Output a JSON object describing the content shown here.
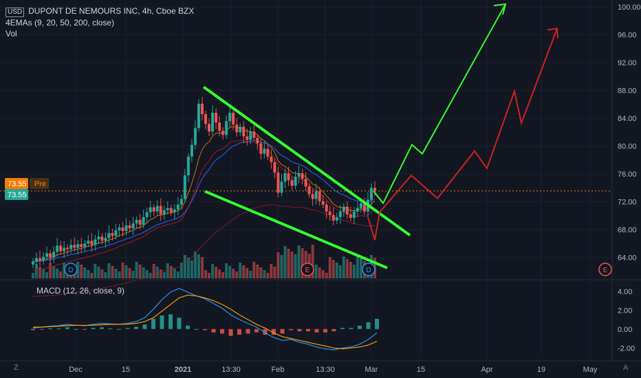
{
  "header": {
    "currency_badge": "USD",
    "symbol_line": "DUPONT DE NEMOURS INC, 4h, Cboe BZX",
    "indicator_line": "4EMAs (9, 20, 50, 200, close)",
    "volume_label": "Vol"
  },
  "price_tags": {
    "pre_value": "73.55",
    "pre_label": "Pre",
    "last_value": "73.55"
  },
  "macd_label": "MACD (12, 26, close, 9)",
  "corner_left": "Z",
  "corner_right": "A",
  "colors": {
    "background": "#131722",
    "up": "#26a69a",
    "down": "#ef5350",
    "trendline": "#33ff33",
    "projection_green": "#33ff33",
    "projection_red": "#cc2222",
    "ema9": "#f57c00",
    "ema20": "#2962ff",
    "ema50": "#b71c1c",
    "ema200": "#b71c1c",
    "macd_line": "#2196f3",
    "signal_line": "#ff9800"
  },
  "chart_data": {
    "type": "candlestick",
    "price_axis": {
      "ticks": [
        "64.00",
        "68.00",
        "72.00",
        "76.00",
        "80.00",
        "84.00",
        "88.00",
        "92.00",
        "96.00",
        "100.00"
      ],
      "range": [
        61.0,
        101.0
      ]
    },
    "time_axis": {
      "ticks": [
        "Dec",
        "15",
        "2021",
        "13:30",
        "Feb",
        "13:30",
        "Mar",
        "15",
        "Apr",
        "19",
        "May"
      ]
    },
    "macd_axis": {
      "ticks": [
        "4.00",
        "2.00",
        "0.00",
        "-2.00"
      ],
      "range": [
        -3.0,
        5.0
      ]
    },
    "event_markers": [
      {
        "label": "D",
        "kind": "dividend",
        "at": "Dec (early)"
      },
      {
        "label": "E",
        "kind": "earnings",
        "at": "Feb (early)"
      },
      {
        "label": "D",
        "kind": "dividend",
        "at": "Mar (late Feb)"
      },
      {
        "label": "E",
        "kind": "earnings",
        "at": "May"
      }
    ],
    "closes": [
      63.4,
      63.9,
      63.6,
      64.1,
      64.6,
      64.0,
      64.8,
      65.7,
      64.9,
      65.4,
      65.2,
      65.8,
      65.4,
      65.9,
      65.5,
      66.0,
      66.4,
      65.8,
      66.6,
      67.0,
      66.4,
      66.8,
      67.5,
      67.1,
      67.9,
      68.3,
      67.8,
      68.6,
      68.2,
      68.9,
      69.4,
      68.7,
      69.8,
      70.5,
      71.2,
      70.6,
      71.4,
      70.2,
      70.8,
      71.1,
      70.5,
      70.9,
      71.6,
      72.4,
      75.8,
      78.5,
      80.2,
      82.6,
      86.1,
      84.6,
      83.2,
      82.1,
      84.8,
      83.4,
      82.2,
      81.6,
      83.6,
      84.8,
      83.1,
      82.0,
      82.8,
      81.4,
      80.9,
      82.1,
      81.2,
      80.4,
      78.9,
      79.6,
      78.5,
      77.7,
      76.2,
      73.3,
      74.9,
      76.1,
      75.1,
      74.3,
      75.6,
      76.1,
      75.3,
      74.2,
      73.1,
      72.4,
      73.5,
      72.1,
      71.6,
      70.6,
      70.1,
      69.3,
      69.8,
      70.6,
      71.3,
      70.2,
      69.7,
      70.6,
      71.1,
      71.8,
      70.6,
      72.3,
      74.0,
      73.55
    ],
    "trendlines": {
      "upper": {
        "from_price": 88.5,
        "to_price": 67.2
      },
      "lower": {
        "from_price": 73.5,
        "to_price": 62.5
      }
    },
    "projections": {
      "green": [
        73.55,
        71.8,
        74.8,
        80.2,
        78.9,
        83.5,
        92.8,
        100.4
      ],
      "red": [
        69.8,
        66.5,
        70.5,
        75.8,
        72.5,
        79.3,
        76.8,
        87.9,
        83.3,
        96.9
      ]
    },
    "volume_note": "volume histogram at bottom of price pane",
    "macd": {
      "note": "histogram plus MACD and signal lines",
      "macd_line": [
        0.1,
        0.2,
        0.3,
        0.35,
        0.5,
        0.4,
        0.35,
        0.5,
        0.6,
        0.55,
        0.5,
        0.6,
        0.8,
        1.2,
        2.1,
        3.1,
        3.9,
        4.3,
        3.9,
        3.5,
        3.2,
        2.7,
        2.2,
        1.5,
        1.0,
        0.6,
        0.2,
        -0.4,
        -0.9,
        -1.2,
        -1.1,
        -1.4,
        -1.6,
        -1.9,
        -2.1,
        -2.2,
        -2.0,
        -1.9,
        -1.6,
        -1.1,
        -0.4
      ],
      "signal_line": [
        0.2,
        0.2,
        0.25,
        0.3,
        0.35,
        0.4,
        0.38,
        0.4,
        0.45,
        0.5,
        0.5,
        0.52,
        0.6,
        0.8,
        1.2,
        1.9,
        2.6,
        3.3,
        3.6,
        3.5,
        3.3,
        3.0,
        2.6,
        2.1,
        1.5,
        1.0,
        0.5,
        0.1,
        -0.4,
        -0.8,
        -1.0,
        -1.2,
        -1.4,
        -1.6,
        -1.8,
        -2.0,
        -2.1,
        -2.0,
        -1.9,
        -1.7,
        -1.3
      ]
    }
  }
}
